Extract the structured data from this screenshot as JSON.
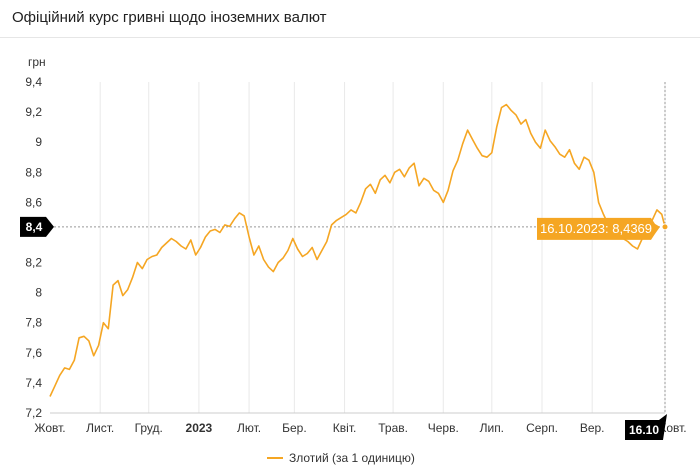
{
  "header": {
    "title": "Офіційний курс гривні щодо іноземних валют"
  },
  "chart_data": {
    "type": "line",
    "title": "Офіційний курс гривні щодо іноземних валют",
    "ylabel": "грн",
    "xlabel": "",
    "ylim": [
      7.2,
      9.4
    ],
    "y_ticks": [
      "9,4",
      "9,2",
      "9",
      "8,8",
      "8,6",
      "8,4",
      "8,2",
      "8",
      "7,8",
      "7,6",
      "7,4",
      "7,2"
    ],
    "x_ticks": [
      "Жовт.",
      "Лист.",
      "Груд.",
      "2023",
      "Лют.",
      "Бер.",
      "Квіт.",
      "Трав.",
      "Черв.",
      "Лип.",
      "Серп.",
      "Вер.",
      "Жовт."
    ],
    "grid": "vertical",
    "legend_position": "bottom",
    "crosshair": {
      "y_label": "8,4",
      "x_label": "16.10",
      "value": 8.4369
    },
    "tooltip": "16.10.2023: 8,4369",
    "series": [
      {
        "name": "Злотий (за 1 одиницю)",
        "color": "#f5a623",
        "points": [
          [
            "2022-10-01",
            7.31
          ],
          [
            "2022-10-04",
            7.38
          ],
          [
            "2022-10-07",
            7.45
          ],
          [
            "2022-10-10",
            7.5
          ],
          [
            "2022-10-13",
            7.49
          ],
          [
            "2022-10-16",
            7.55
          ],
          [
            "2022-10-19",
            7.7
          ],
          [
            "2022-10-22",
            7.71
          ],
          [
            "2022-10-25",
            7.68
          ],
          [
            "2022-10-28",
            7.58
          ],
          [
            "2022-10-31",
            7.65
          ],
          [
            "2022-11-03",
            7.8
          ],
          [
            "2022-11-06",
            7.76
          ],
          [
            "2022-11-09",
            8.05
          ],
          [
            "2022-11-12",
            8.08
          ],
          [
            "2022-11-15",
            7.98
          ],
          [
            "2022-11-18",
            8.02
          ],
          [
            "2022-11-21",
            8.1
          ],
          [
            "2022-11-24",
            8.2
          ],
          [
            "2022-11-27",
            8.16
          ],
          [
            "2022-11-30",
            8.22
          ],
          [
            "2022-12-03",
            8.24
          ],
          [
            "2022-12-06",
            8.25
          ],
          [
            "2022-12-09",
            8.3
          ],
          [
            "2022-12-12",
            8.33
          ],
          [
            "2022-12-15",
            8.36
          ],
          [
            "2022-12-18",
            8.34
          ],
          [
            "2022-12-21",
            8.31
          ],
          [
            "2022-12-24",
            8.29
          ],
          [
            "2022-12-27",
            8.35
          ],
          [
            "2022-12-30",
            8.25
          ],
          [
            "2023-01-02",
            8.3
          ],
          [
            "2023-01-05",
            8.37
          ],
          [
            "2023-01-08",
            8.41
          ],
          [
            "2023-01-11",
            8.42
          ],
          [
            "2023-01-14",
            8.4
          ],
          [
            "2023-01-17",
            8.45
          ],
          [
            "2023-01-20",
            8.44
          ],
          [
            "2023-01-23",
            8.49
          ],
          [
            "2023-01-26",
            8.53
          ],
          [
            "2023-01-29",
            8.51
          ],
          [
            "2023-02-01",
            8.37
          ],
          [
            "2023-02-04",
            8.25
          ],
          [
            "2023-02-07",
            8.31
          ],
          [
            "2023-02-10",
            8.22
          ],
          [
            "2023-02-13",
            8.17
          ],
          [
            "2023-02-16",
            8.14
          ],
          [
            "2023-02-19",
            8.2
          ],
          [
            "2023-02-22",
            8.23
          ],
          [
            "2023-02-25",
            8.28
          ],
          [
            "2023-02-28",
            8.36
          ],
          [
            "2023-03-03",
            8.29
          ],
          [
            "2023-03-06",
            8.24
          ],
          [
            "2023-03-09",
            8.26
          ],
          [
            "2023-03-12",
            8.3
          ],
          [
            "2023-03-15",
            8.22
          ],
          [
            "2023-03-18",
            8.28
          ],
          [
            "2023-03-21",
            8.34
          ],
          [
            "2023-03-24",
            8.45
          ],
          [
            "2023-03-27",
            8.48
          ],
          [
            "2023-03-30",
            8.5
          ],
          [
            "2023-04-02",
            8.52
          ],
          [
            "2023-04-05",
            8.55
          ],
          [
            "2023-04-08",
            8.53
          ],
          [
            "2023-04-11",
            8.6
          ],
          [
            "2023-04-14",
            8.69
          ],
          [
            "2023-04-17",
            8.72
          ],
          [
            "2023-04-20",
            8.66
          ],
          [
            "2023-04-23",
            8.75
          ],
          [
            "2023-04-26",
            8.78
          ],
          [
            "2023-04-29",
            8.73
          ],
          [
            "2023-05-02",
            8.8
          ],
          [
            "2023-05-05",
            8.82
          ],
          [
            "2023-05-08",
            8.77
          ],
          [
            "2023-05-11",
            8.83
          ],
          [
            "2023-05-14",
            8.86
          ],
          [
            "2023-05-17",
            8.71
          ],
          [
            "2023-05-20",
            8.76
          ],
          [
            "2023-05-23",
            8.74
          ],
          [
            "2023-05-26",
            8.68
          ],
          [
            "2023-05-29",
            8.66
          ],
          [
            "2023-06-01",
            8.6
          ],
          [
            "2023-06-04",
            8.68
          ],
          [
            "2023-06-07",
            8.81
          ],
          [
            "2023-06-10",
            8.88
          ],
          [
            "2023-06-13",
            8.99
          ],
          [
            "2023-06-16",
            9.08
          ],
          [
            "2023-06-19",
            9.02
          ],
          [
            "2023-06-22",
            8.96
          ],
          [
            "2023-06-25",
            8.91
          ],
          [
            "2023-06-28",
            8.9
          ],
          [
            "2023-07-01",
            8.93
          ],
          [
            "2023-07-04",
            9.1
          ],
          [
            "2023-07-07",
            9.23
          ],
          [
            "2023-07-10",
            9.25
          ],
          [
            "2023-07-13",
            9.21
          ],
          [
            "2023-07-16",
            9.18
          ],
          [
            "2023-07-19",
            9.12
          ],
          [
            "2023-07-22",
            9.15
          ],
          [
            "2023-07-25",
            9.06
          ],
          [
            "2023-07-28",
            9.0
          ],
          [
            "2023-07-31",
            8.96
          ],
          [
            "2023-08-03",
            9.08
          ],
          [
            "2023-08-06",
            9.01
          ],
          [
            "2023-08-09",
            8.97
          ],
          [
            "2023-08-12",
            8.92
          ],
          [
            "2023-08-15",
            8.9
          ],
          [
            "2023-08-18",
            8.95
          ],
          [
            "2023-08-21",
            8.86
          ],
          [
            "2023-08-24",
            8.82
          ],
          [
            "2023-08-27",
            8.9
          ],
          [
            "2023-08-30",
            8.88
          ],
          [
            "2023-09-02",
            8.8
          ],
          [
            "2023-09-05",
            8.6
          ],
          [
            "2023-09-08",
            8.52
          ],
          [
            "2023-09-11",
            8.45
          ],
          [
            "2023-09-14",
            8.43
          ],
          [
            "2023-09-17",
            8.41
          ],
          [
            "2023-09-20",
            8.36
          ],
          [
            "2023-09-23",
            8.34
          ],
          [
            "2023-09-26",
            8.31
          ],
          [
            "2023-09-29",
            8.29
          ],
          [
            "2023-10-02",
            8.36
          ],
          [
            "2023-10-05",
            8.42
          ],
          [
            "2023-10-08",
            8.48
          ],
          [
            "2023-10-11",
            8.55
          ],
          [
            "2023-10-14",
            8.52
          ],
          [
            "2023-10-16",
            8.4369
          ]
        ]
      }
    ]
  }
}
